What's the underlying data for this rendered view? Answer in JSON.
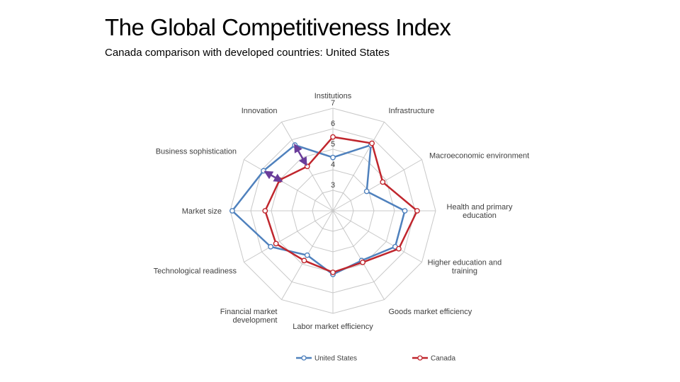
{
  "title": "The Global Competitiveness Index",
  "subtitle": "Canada comparison with developed countries: United States",
  "chart_data": {
    "type": "radar",
    "axes": [
      [
        "Institutions"
      ],
      [
        "Infrastructure"
      ],
      [
        "Macroeconomic environment"
      ],
      [
        "Health and primary",
        "education"
      ],
      [
        "Higher education and",
        "training"
      ],
      [
        "Goods market efficiency"
      ],
      [
        "Labor market efficiency"
      ],
      [
        "Financial market",
        "development"
      ],
      [
        "Technological readiness"
      ],
      [
        "Market size"
      ],
      [
        "Business sophistication"
      ],
      [
        "Innovation"
      ]
    ],
    "rlim": [
      2,
      7
    ],
    "ticks": [
      3,
      4,
      5,
      6,
      7
    ],
    "grid": true,
    "legend_position": "bottom",
    "series": [
      {
        "name": "United States",
        "color": "#4f81bd",
        "values": [
          4.6,
          5.7,
          3.9,
          5.5,
          5.5,
          4.8,
          5.1,
          4.5,
          5.5,
          6.9,
          5.9,
          5.7
        ]
      },
      {
        "name": "Canada",
        "color": "#c0262d",
        "values": [
          5.6,
          5.8,
          4.8,
          6.1,
          5.7,
          4.9,
          5.0,
          4.8,
          5.2,
          5.3,
          5.0,
          4.5
        ]
      }
    ],
    "annotations": [
      {
        "type": "arrow",
        "color": "#6a3d9a",
        "from_axis": 11,
        "from_value": 5.7,
        "to_axis": 11,
        "to_value": 4.6
      },
      {
        "type": "arrow",
        "color": "#6a3d9a",
        "from_axis": 10,
        "from_value": 5.8,
        "to_axis": 10,
        "to_value": 4.9
      }
    ]
  }
}
